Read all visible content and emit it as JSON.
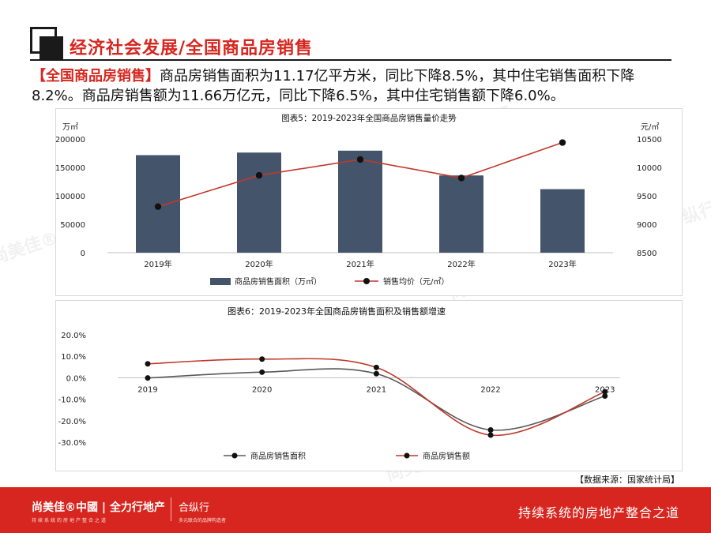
{
  "header": {
    "title": "经济社会发展/全国商品房销售"
  },
  "summary": {
    "tag": "【全国商品房销售】",
    "text": "商品房销售面积为11.17亿平方米，同比下降8.5%，其中住宅销售面积下降8.2%。商品房销售额为11.66万亿元，同比下降6.5%，其中住宅销售额下降6.0%。"
  },
  "watermark": "尚美佳®中國 | 全力行地产 | 合纵行",
  "chart_data": [
    {
      "type": "bar",
      "title": "图表5：2019-2023年全国商品房销售量价走势",
      "categories": [
        "2019年",
        "2020年",
        "2021年",
        "2022年",
        "2023年"
      ],
      "y_unit_left": "万㎡",
      "y_unit_right": "元/㎡",
      "ylim_left": [
        0,
        200000
      ],
      "yticks_left": [
        "0",
        "50000",
        "100000",
        "150000",
        "200000"
      ],
      "ylim_right": [
        8500,
        10500
      ],
      "yticks_right": [
        "8500",
        "9000",
        "9500",
        "10000",
        "10500"
      ],
      "series": [
        {
          "name": "商品房销售面积（万㎡）",
          "type": "bar",
          "axis": "left",
          "color": "#44546a",
          "values": [
            171558,
            176086,
            179433,
            135837,
            111735
          ]
        },
        {
          "name": "销售均价（元/㎡）",
          "type": "line",
          "axis": "right",
          "color": "#c0392b",
          "values": [
            9310,
            9860,
            10139,
            9814,
            10437
          ]
        }
      ],
      "legend_position": "bottom"
    },
    {
      "type": "line",
      "title": "图表6：2019-2023年全国商品房销售面积及销售额增速",
      "categories": [
        "2019",
        "2020",
        "2021",
        "2022",
        "2023"
      ],
      "ylim": [
        -30,
        20
      ],
      "yticks": [
        "20.0%",
        "10.0%",
        "0.0%",
        "-10.0%",
        "-20.0%",
        "-30.0%"
      ],
      "series": [
        {
          "name": "商品房销售面积",
          "color": "#595959",
          "values": [
            -0.1,
            2.6,
            1.9,
            -24.3,
            -8.5
          ]
        },
        {
          "name": "商品房销售额",
          "color": "#c0392b",
          "values": [
            6.5,
            8.7,
            4.8,
            -26.7,
            -6.5
          ]
        }
      ],
      "legend_position": "bottom"
    }
  ],
  "source": "【数据来源：国家统计局】",
  "footer": {
    "brand": "尚美佳®中國 | 全力行地产",
    "brand_sub": "持续系统的房地产整合之道",
    "brand2": "合纵行",
    "brand2_sub": "多元联合的品牌构造者",
    "slogan": "持续系统的房地产整合之道"
  }
}
